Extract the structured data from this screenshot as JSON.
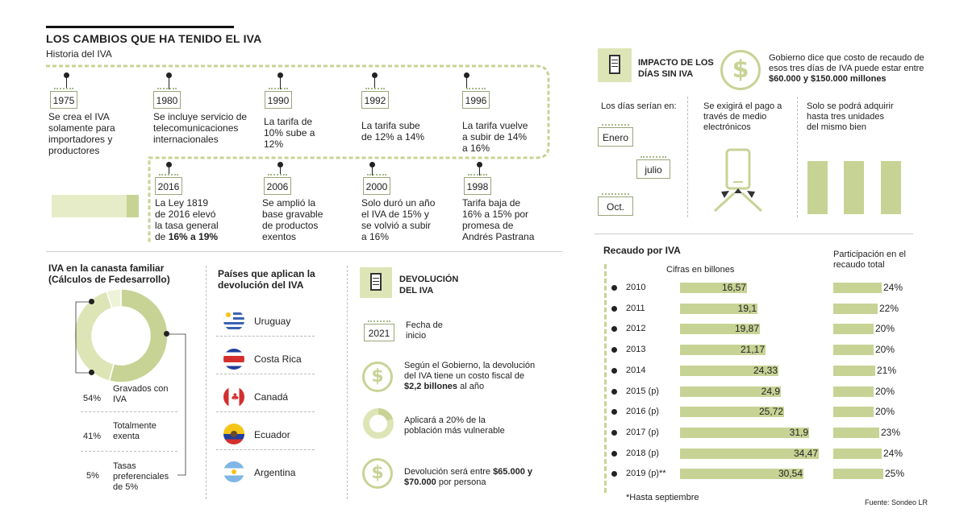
{
  "header": {
    "title": "LOS CAMBIOS QUE HA TENIDO EL IVA",
    "subtitle": "Historia del IVA"
  },
  "timeline": [
    {
      "year": "1975",
      "text": "Se crea el IVA solamente para importadores y productores"
    },
    {
      "year": "1980",
      "text": "Se incluye servicio de telecomunicaciones internacionales"
    },
    {
      "year": "1990",
      "text": "La tarifa de 10% sube a 12%"
    },
    {
      "year": "1992",
      "text": "La tarifa sube de 12% a 14%"
    },
    {
      "year": "1996",
      "text": "La tarifa vuelve a subir de 14% a 16%"
    },
    {
      "year": "2016",
      "text_a": "La Ley 1819 de 2016 elevó la tasa general de ",
      "text_b": "16% a 19%"
    },
    {
      "year": "2006",
      "text": "Se amplió la base gravable de productos exentos"
    },
    {
      "year": "2000",
      "text": "Solo duró un año el IVA de 15% y se volvió a subir a 16%"
    },
    {
      "year": "1998",
      "text": "Tarifa baja de 16% a 15% por promesa de Andrés Pastrana"
    }
  ],
  "canasta": {
    "title": "IVA en la canasta familiar (Cálculos de Fedesarrollo)",
    "items": [
      {
        "pct": "54%",
        "label": "Gravados con IVA",
        "value": 54
      },
      {
        "pct": "41%",
        "label": "Totalmente exenta",
        "value": 41
      },
      {
        "pct": "5%",
        "label": "Tasas preferenciales de 5%",
        "value": 5
      }
    ]
  },
  "paises": {
    "title": "Países que aplican la devolución del IVA",
    "items": [
      "Uruguay",
      "Costa Rica",
      "Canadá",
      "Ecuador",
      "Argentina"
    ]
  },
  "devolucion": {
    "title": "DEVOLUCIÓN DEL IVA",
    "year": "2021",
    "fecha": "Fecha de inicio",
    "costo_a": "Según el Gobierno, la devolución del IVA tiene un costo fiscal de ",
    "costo_b": "$2,2 billones",
    "costo_c": " al año",
    "poblacion": "Aplicará a 20% de la población más vulnerable",
    "monto_a": "Devolución será entre ",
    "monto_b": "$65.000 y $70.000",
    "monto_c": " por persona"
  },
  "impacto": {
    "title": "IMPACTO DE LOS DÍAS SIN IVA",
    "costo_a": "Gobierno dice que costo de recaudo de esos tres días de IVA puede estar entre ",
    "costo_b": "$60.000 y $150.000 millones",
    "dias_label": "Los días serían en:",
    "meses": [
      "Enero",
      "julio",
      "Oct."
    ],
    "pago": "Se exigirá el pago a través de medio electrónicos",
    "unidades": "Solo se podrá adquirir hasta tres unidades del mismo bien"
  },
  "chart_data": {
    "type": "bar",
    "title": "Recaudo por IVA",
    "series": [
      {
        "name": "Cifras en billones",
        "values": [
          16.57,
          19.1,
          19.87,
          21.17,
          24.33,
          24.9,
          25.72,
          31.9,
          34.47,
          30.54
        ]
      },
      {
        "name": "Participación en el recaudo total",
        "values": [
          24,
          22,
          20,
          20,
          21,
          20,
          20,
          23,
          24,
          25
        ]
      }
    ],
    "categories": [
      "2010",
      "2011",
      "2012",
      "2013",
      "2014",
      "2015 (p)",
      "2016 (p)",
      "2017 (p)",
      "2018 (p)",
      "2019 (p)**"
    ],
    "value_labels": [
      "16,57",
      "19,1",
      "19,87",
      "21,17",
      "24,33",
      "24,9",
      "25,72",
      "31,9",
      "34,47",
      "30,54"
    ],
    "pct_labels": [
      "24%",
      "22%",
      "20%",
      "20%",
      "21%",
      "20%",
      "20%",
      "23%",
      "24%",
      "25%"
    ],
    "col1_label": "Cifras en billones",
    "col2_label": "Participación en el recaudo total",
    "footnote": "*Hasta septiembre",
    "source": "Fuente: Sondeo LR"
  },
  "colors": {
    "accent": "#c7d395",
    "accent_light": "#dde5b6"
  }
}
